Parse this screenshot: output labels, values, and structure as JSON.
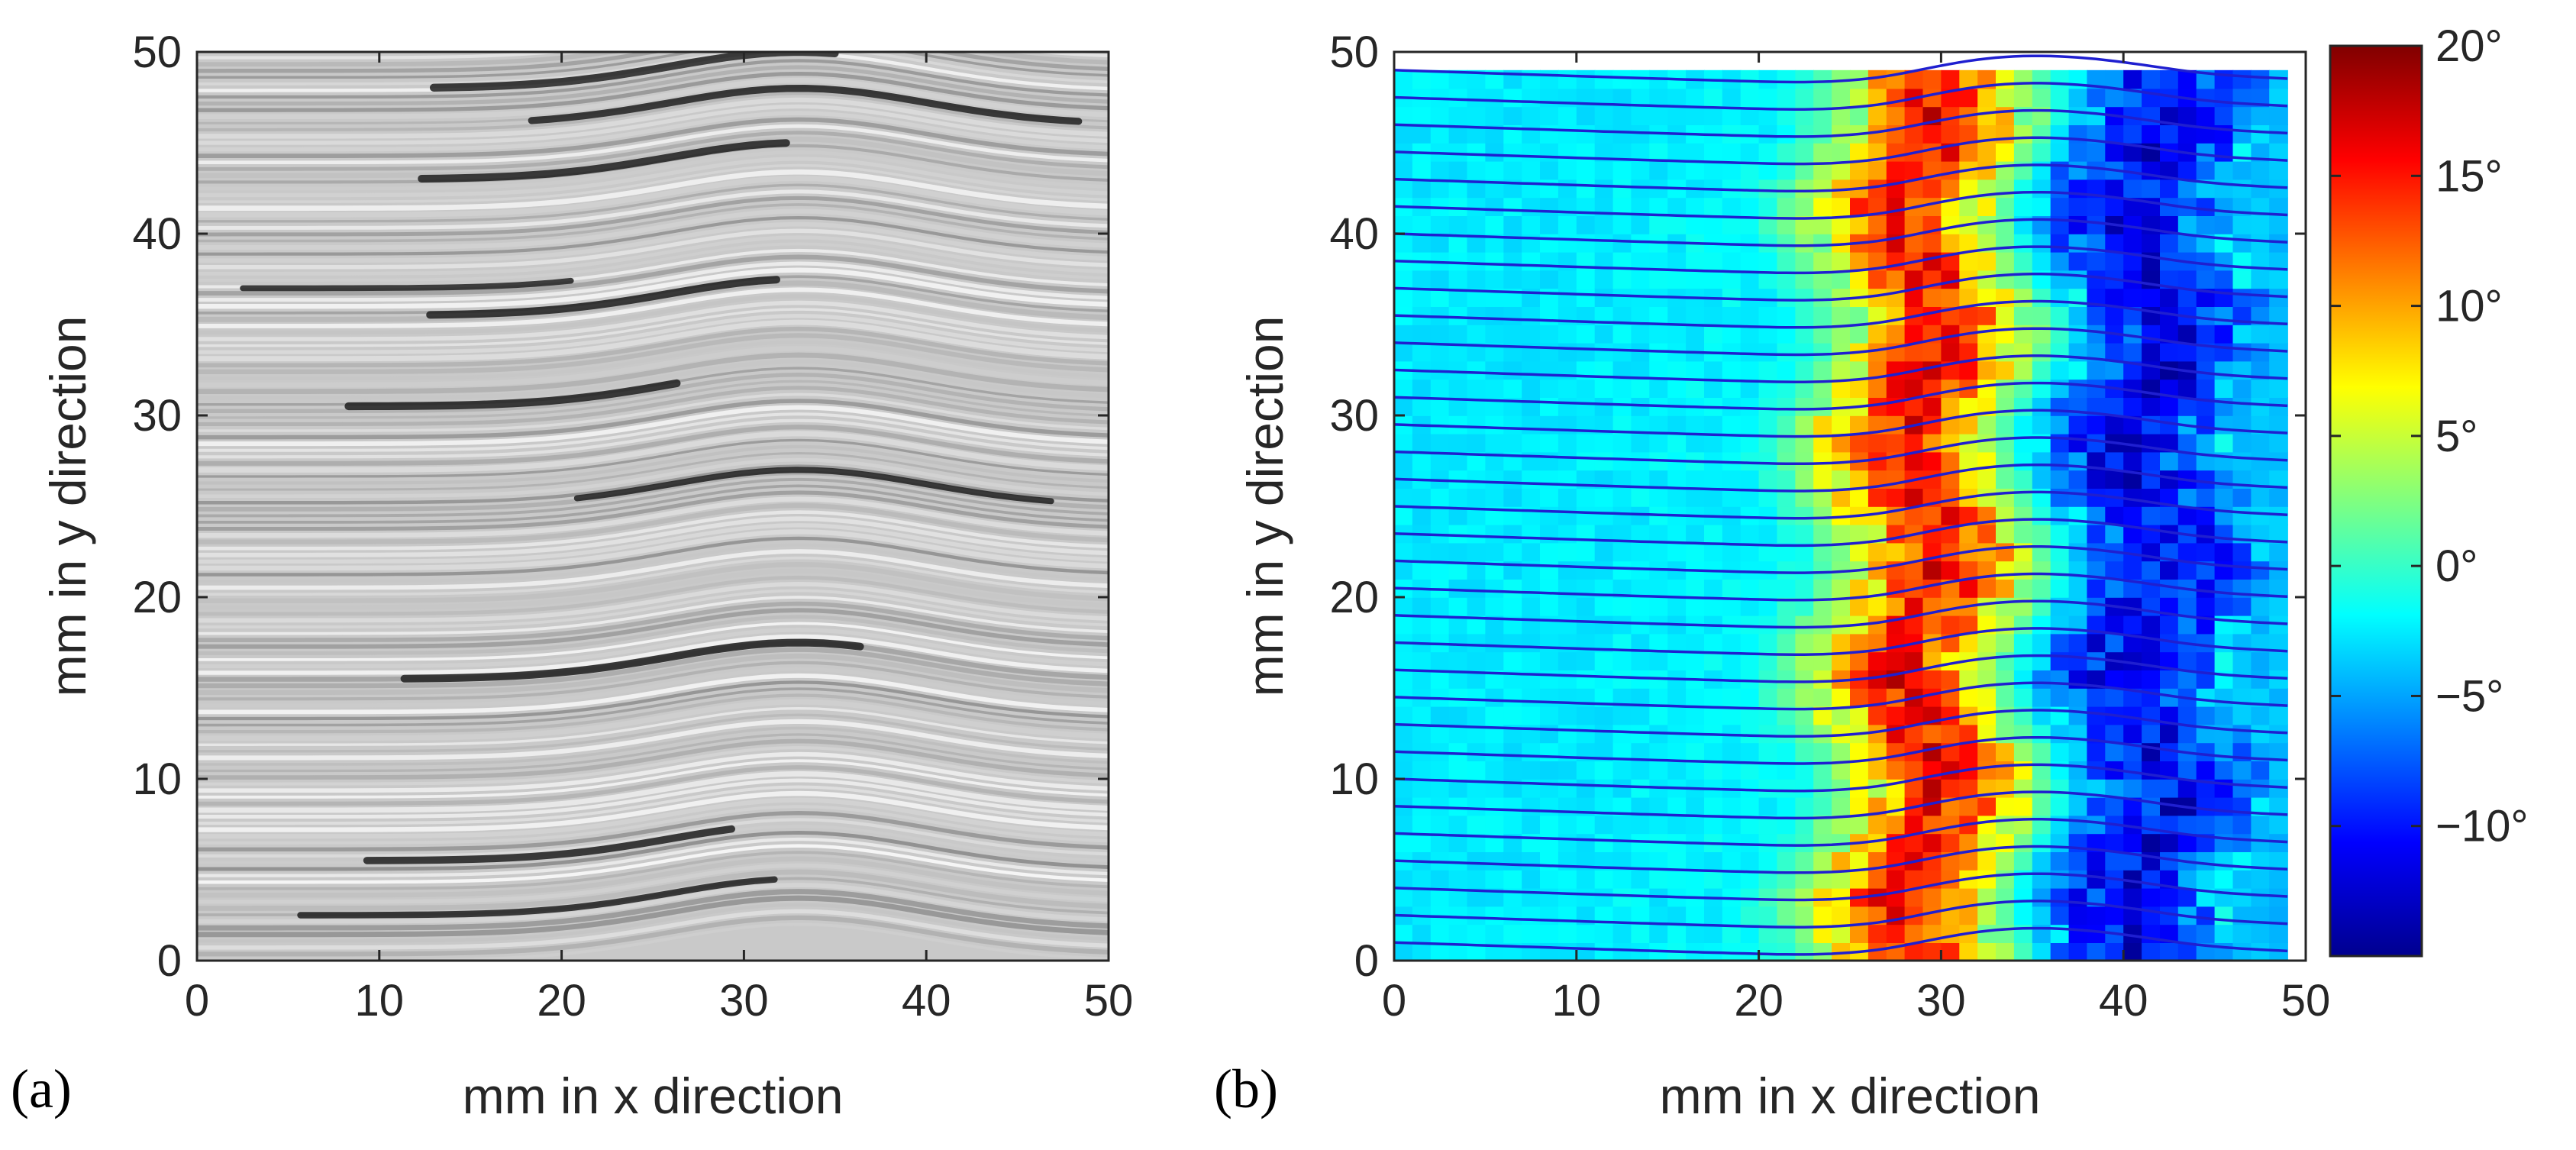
{
  "chart_data": [
    {
      "type": "heatmap",
      "panel_label": "(a)",
      "panel_letter": "a",
      "description_kind": "grayscale fiber image",
      "xlabel": "mm in x direction",
      "ylabel": "mm in y direction",
      "xlim": [
        0,
        50
      ],
      "ylim": [
        0,
        50
      ],
      "x_ticks": [
        0,
        10,
        20,
        30,
        40,
        50
      ],
      "y_ticks": [
        0,
        10,
        20,
        30,
        40,
        50
      ],
      "x_tick_labels": [
        "0",
        "10",
        "20",
        "30",
        "40",
        "50"
      ],
      "y_tick_labels": [
        "0",
        "10",
        "20",
        "30",
        "40",
        "50"
      ],
      "waviness_center_x": 33,
      "dark_streaks_y": [
        2.5,
        5.5,
        15.5,
        25,
        30.5,
        35.5,
        37,
        43,
        46,
        48
      ]
    },
    {
      "type": "heatmap",
      "panel_label": "(b)",
      "panel_letter": "b",
      "xlabel": "mm in x direction",
      "ylabel": "mm in y direction",
      "xlim": [
        0,
        50
      ],
      "ylim": [
        0,
        50
      ],
      "x_ticks": [
        0,
        10,
        20,
        30,
        40,
        50
      ],
      "y_ticks": [
        0,
        10,
        20,
        30,
        40,
        50
      ],
      "x_tick_labels": [
        "0",
        "10",
        "20",
        "30",
        "40",
        "50"
      ],
      "y_tick_labels": [
        "0",
        "10",
        "20",
        "30",
        "40",
        "50"
      ],
      "data_extent_x": [
        0,
        49
      ],
      "data_extent_y": [
        0,
        49
      ],
      "grid_cells": [
        49,
        49
      ],
      "angle_profile_x": [
        0,
        5,
        10,
        15,
        20,
        22,
        24,
        26,
        27,
        28,
        29,
        30,
        31,
        32,
        33,
        34,
        35,
        36,
        37,
        38,
        39,
        40,
        41,
        42,
        43,
        44,
        45,
        46,
        47,
        49
      ],
      "angle_profile_deg": [
        -2.5,
        -2.5,
        -2.5,
        -2.3,
        -2,
        0,
        4,
        9,
        13,
        15,
        15,
        14,
        12,
        9,
        6,
        3,
        0,
        -3,
        -5,
        -7,
        -9,
        -10,
        -11,
        -11,
        -10,
        -8,
        -7,
        -5,
        -4,
        -4
      ],
      "fiber_lines": {
        "count": 33,
        "y_start": 1,
        "y_end": 49,
        "color": "#1f1fd0"
      },
      "colorbar": {
        "min": -15,
        "max": 20,
        "ticks": [
          20,
          15,
          10,
          5,
          0,
          -5,
          -10
        ],
        "tick_labels": [
          "20°",
          "15°",
          "10°",
          "5°",
          "0°",
          "−5°",
          "−10°"
        ],
        "colormap": "jet"
      }
    }
  ]
}
